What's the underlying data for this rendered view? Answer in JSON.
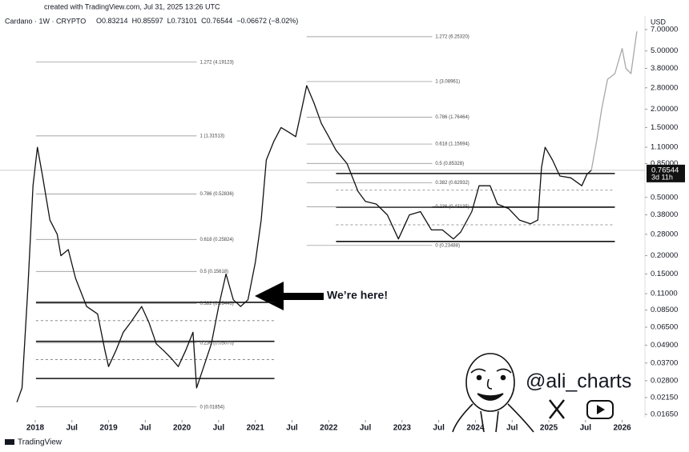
{
  "header": {
    "created": "created with TradingView.com, Jul 31, 2025 13:26 UTC",
    "footer": "TradingView",
    "watermark": "@ali_charts"
  },
  "chart_data": {
    "type": "line",
    "title": "Cardano · 1W · CRYPTO",
    "ohlc": [
      {
        "label": "O",
        "value": 0.83214
      },
      {
        "label": "H",
        "value": 0.85597
      },
      {
        "label": "L",
        "value": 0.73101
      },
      {
        "label": "C",
        "value": 0.76544
      }
    ],
    "change": "−0.06672 (−8.02%)",
    "y_axis_label": "USD",
    "log_scale": true,
    "grid": false,
    "last_price": 0.76544,
    "countdown": "3d 11h",
    "annotation": "We’re here!",
    "xlim": [
      2017.52,
      2026.31
    ],
    "ylim": [
      0.0151,
      8.66
    ],
    "xticks": [
      2018,
      {
        "value": 2018.5,
        "label": "Jul"
      },
      2019,
      {
        "value": 2019.5,
        "label": "Jul"
      },
      2020,
      {
        "value": 2020.5,
        "label": "Jul"
      },
      2021,
      {
        "value": 2021.5,
        "label": "Jul"
      },
      2022,
      {
        "value": 2022.5,
        "label": "Jul"
      },
      2023,
      {
        "value": 2023.5,
        "label": "Jul"
      },
      2024,
      {
        "value": 2024.5,
        "label": "Jul"
      },
      2025,
      {
        "value": 2025.5,
        "label": "Jul"
      },
      2026
    ],
    "yticks": [
      {
        "value": 7,
        "label": "7.00000"
      },
      {
        "value": 5,
        "label": "5.00000"
      },
      {
        "value": 3.8,
        "label": "3.80000"
      },
      {
        "value": 2.8,
        "label": "2.80000"
      },
      {
        "value": 2,
        "label": "2.00000"
      },
      {
        "value": 1.5,
        "label": "1.50000"
      },
      {
        "value": 1.1,
        "label": "1.10000"
      },
      {
        "value": 0.85,
        "label": "0.85000"
      },
      {
        "value": 0.5,
        "label": "0.50000"
      },
      {
        "value": 0.38,
        "label": "0.38000"
      },
      {
        "value": 0.28,
        "label": "0.28000"
      },
      {
        "value": 0.2,
        "label": "0.20000"
      },
      {
        "value": 0.15,
        "label": "0.15000"
      },
      {
        "value": 0.11,
        "label": "0.11000"
      },
      {
        "value": 0.085,
        "label": "0.08500"
      },
      {
        "value": 0.065,
        "label": "0.06500"
      },
      {
        "value": 0.049,
        "label": "0.04900"
      },
      {
        "value": 0.037,
        "label": "0.03700"
      },
      {
        "value": 0.028,
        "label": "0.02800"
      },
      {
        "value": 0.0215,
        "label": "0.02150"
      },
      {
        "value": 0.0165,
        "label": "0.01650"
      }
    ],
    "x": [
      2017.75,
      2017.82,
      2017.9,
      2017.97,
      2018.03,
      2018.1,
      2018.2,
      2018.3,
      2018.35,
      2018.45,
      2018.55,
      2018.7,
      2018.85,
      2018.95,
      2019.0,
      2019.1,
      2019.2,
      2019.3,
      2019.45,
      2019.55,
      2019.65,
      2019.75,
      2019.85,
      2019.95,
      2020.05,
      2020.15,
      2020.2,
      2020.28,
      2020.4,
      2020.5,
      2020.6,
      2020.7,
      2020.8,
      2020.9,
      2021.0,
      2021.08,
      2021.15,
      2021.25,
      2021.35,
      2021.45,
      2021.55,
      2021.65,
      2021.7,
      2021.8,
      2021.9,
      2022.0,
      2022.1,
      2022.25,
      2022.4,
      2022.5,
      2022.65,
      2022.8,
      2022.95,
      2023.1,
      2023.25,
      2023.4,
      2023.55,
      2023.7,
      2023.8,
      2023.95,
      2024.05,
      2024.2,
      2024.3,
      2024.45,
      2024.6,
      2024.75,
      2024.85,
      2024.9,
      2024.95,
      2025.05,
      2025.15,
      2025.3,
      2025.45,
      2025.52,
      2025.58,
      2025.65,
      2025.72,
      2025.8,
      2025.9,
      2026.0,
      2026.05,
      2026.12,
      2026.2
    ],
    "series": [
      {
        "color": "#111111",
        "values": [
          0.02,
          0.025,
          0.12,
          0.6,
          1.1,
          0.7,
          0.35,
          0.28,
          0.2,
          0.22,
          0.14,
          0.09,
          0.08,
          0.045,
          0.035,
          0.045,
          0.06,
          0.07,
          0.09,
          0.07,
          0.05,
          0.045,
          0.04,
          0.035,
          0.045,
          0.06,
          0.025,
          0.033,
          0.05,
          0.09,
          0.15,
          0.1,
          0.09,
          0.1,
          0.18,
          0.35,
          0.9,
          1.2,
          1.5,
          1.4,
          1.3,
          2.2,
          2.9,
          2.2,
          1.6,
          1.3,
          1.05,
          0.85,
          0.55,
          0.47,
          0.45,
          0.38,
          0.26,
          0.38,
          0.4,
          0.3,
          0.3,
          0.26,
          0.29,
          0.4,
          0.6,
          0.6,
          0.45,
          0.42,
          0.35,
          0.33,
          0.35,
          0.8,
          1.1,
          0.9,
          0.7,
          0.68,
          0.6,
          0.72,
          0.76544,
          null,
          null,
          null,
          null,
          null,
          null,
          null,
          null
        ]
      },
      {
        "color": "#a8a8a8",
        "values": [
          null,
          null,
          null,
          null,
          null,
          null,
          null,
          null,
          null,
          null,
          null,
          null,
          null,
          null,
          null,
          null,
          null,
          null,
          null,
          null,
          null,
          null,
          null,
          null,
          null,
          null,
          null,
          null,
          null,
          null,
          null,
          null,
          null,
          null,
          null,
          null,
          null,
          null,
          null,
          null,
          null,
          null,
          null,
          null,
          null,
          null,
          null,
          null,
          null,
          null,
          null,
          null,
          null,
          null,
          null,
          null,
          null,
          null,
          null,
          null,
          null,
          null,
          null,
          null,
          null,
          null,
          null,
          null,
          null,
          null,
          null,
          null,
          null,
          null,
          0.76544,
          1.2,
          2.0,
          3.2,
          3.5,
          5.2,
          3.8,
          3.5,
          6.8
        ]
      }
    ],
    "fib_sets": [
      {
        "from": 2018.01,
        "to": 2020.2,
        "levels": [
          {
            "value": 4.19123,
            "label": "1.272 (4.19123)"
          },
          {
            "value": 1.31513,
            "label": "1 (1.31513)"
          },
          {
            "value": 0.52836,
            "label": "0.786 (0.52836)"
          },
          {
            "value": 0.25824,
            "label": "0.618 (0.25824)"
          },
          {
            "value": 0.15618,
            "label": "0.5 (0.15618)"
          },
          {
            "value": 0.09446,
            "label": "0.382 (0.09446)"
          },
          {
            "value": 0.0507,
            "label": "0.236 (0.05070)"
          },
          {
            "value": 0.01854,
            "label": "0 (0.01854)"
          }
        ]
      },
      {
        "from": 2021.7,
        "to": 2023.41,
        "levels": [
          {
            "value": 6.2532,
            "label": "1.272 (6.25320)"
          },
          {
            "value": 3.08961,
            "label": "1 (3.08961)"
          },
          {
            "value": 1.76464,
            "label": "0.786 (1.76464)"
          },
          {
            "value": 1.15694,
            "label": "0.618 (1.15694)"
          },
          {
            "value": 0.85328,
            "label": "0.5 (0.85328)"
          },
          {
            "value": 0.62932,
            "label": "0.382 (0.62932)"
          },
          {
            "value": 0.43135,
            "label": "0.236 (0.43135)"
          },
          {
            "value": 0.23488,
            "label": "0 (0.23488)"
          }
        ]
      }
    ],
    "levels": [
      {
        "value": 0.096,
        "from": 2018.01,
        "to": 2021.26,
        "style": "solid"
      },
      {
        "value": 0.072,
        "from": 2018.01,
        "to": 2021.26,
        "style": "dashed"
      },
      {
        "value": 0.052,
        "from": 2018.01,
        "to": 2021.26,
        "style": "solid"
      },
      {
        "value": 0.039,
        "from": 2018.01,
        "to": 2021.26,
        "style": "dashed"
      },
      {
        "value": 0.029,
        "from": 2018.01,
        "to": 2021.26,
        "style": "solid"
      },
      {
        "value": 0.728,
        "from": 2022.1,
        "to": 2025.9,
        "style": "solid"
      },
      {
        "value": 0.56,
        "from": 2022.1,
        "to": 2025.9,
        "style": "dashed"
      },
      {
        "value": 0.429,
        "from": 2022.1,
        "to": 2025.9,
        "style": "solid"
      },
      {
        "value": 0.325,
        "from": 2022.1,
        "to": 2025.9,
        "style": "dashed"
      },
      {
        "value": 0.25,
        "from": 2022.1,
        "to": 2025.9,
        "style": "solid"
      }
    ]
  }
}
